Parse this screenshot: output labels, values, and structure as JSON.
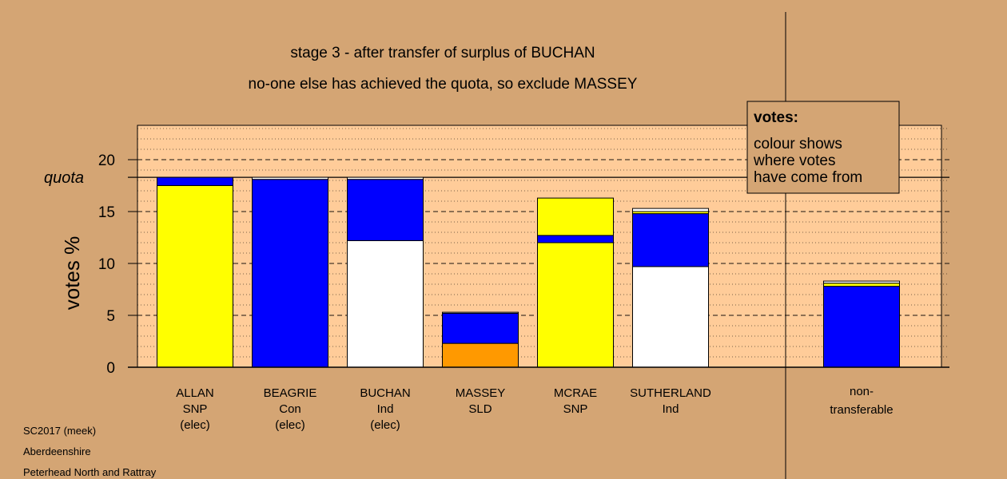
{
  "chart_data": {
    "type": "bar",
    "stacked": true,
    "title": "stage 3 - after transfer of surplus of BUCHAN",
    "subtitle": "no-one else has achieved the quota, so exclude MASSEY",
    "ylabel": "votes %",
    "ylim": [
      0,
      23.5
    ],
    "yticks": [
      0,
      5,
      10,
      15,
      20
    ],
    "quota_label": "quota",
    "quota": 18.3,
    "grid": true,
    "legend_position": "top-right",
    "legend": {
      "heading": "votes:",
      "lines": [
        "colour shows",
        "where votes",
        "have come from"
      ]
    },
    "colors": {
      "yellow": "#ffff00",
      "blue": "#0000ff",
      "white": "#ffffff",
      "orange": "#ff9900",
      "plot_background": "#ffcc99",
      "page_background": "#d4a574"
    },
    "categories": [
      {
        "name": "ALLAN",
        "party": "SNP",
        "status": "(elec)",
        "segments": [
          {
            "color": "#ffff00",
            "value": 17.5
          },
          {
            "color": "#0000ff",
            "value": 0.8
          }
        ]
      },
      {
        "name": "BEAGRIE",
        "party": "Con",
        "status": "(elec)",
        "segments": [
          {
            "color": "#0000ff",
            "value": 18.1
          },
          {
            "color": "#ffffff",
            "value": 0.2
          }
        ]
      },
      {
        "name": "BUCHAN",
        "party": "Ind",
        "status": "(elec)",
        "segments": [
          {
            "color": "#ffffff",
            "value": 12.2
          },
          {
            "color": "#0000ff",
            "value": 5.9
          },
          {
            "color": "#ffffff",
            "value": 0.2
          }
        ]
      },
      {
        "name": "MASSEY",
        "party": "SLD",
        "status": "",
        "segments": [
          {
            "color": "#ff9900",
            "value": 2.3
          },
          {
            "color": "#0000ff",
            "value": 2.9
          },
          {
            "color": "#ffffff",
            "value": 0.1
          }
        ]
      },
      {
        "name": "MCRAE",
        "party": "SNP",
        "status": "",
        "segments": [
          {
            "color": "#ffff00",
            "value": 12.0
          },
          {
            "color": "#0000ff",
            "value": 0.7
          },
          {
            "color": "#ffff00",
            "value": 3.6
          }
        ]
      },
      {
        "name": "SUTHERLAND",
        "party": "Ind",
        "status": "",
        "segments": [
          {
            "color": "#ffffff",
            "value": 9.7
          },
          {
            "color": "#0000ff",
            "value": 5.1
          },
          {
            "color": "#ffff00",
            "value": 0.2
          },
          {
            "color": "#ffffff",
            "value": 0.3
          }
        ]
      }
    ],
    "nontransferable": {
      "label_lines": [
        "non-",
        "transferable"
      ],
      "segments": [
        {
          "color": "#0000ff",
          "value": 7.8
        },
        {
          "color": "#ffff00",
          "value": 0.3
        },
        {
          "color": "#ffffff",
          "value": 0.2
        }
      ]
    }
  },
  "footer": {
    "lines": [
      "SC2017 (meek)",
      "Aberdeenshire",
      "Peterhead North and Rattray"
    ]
  }
}
